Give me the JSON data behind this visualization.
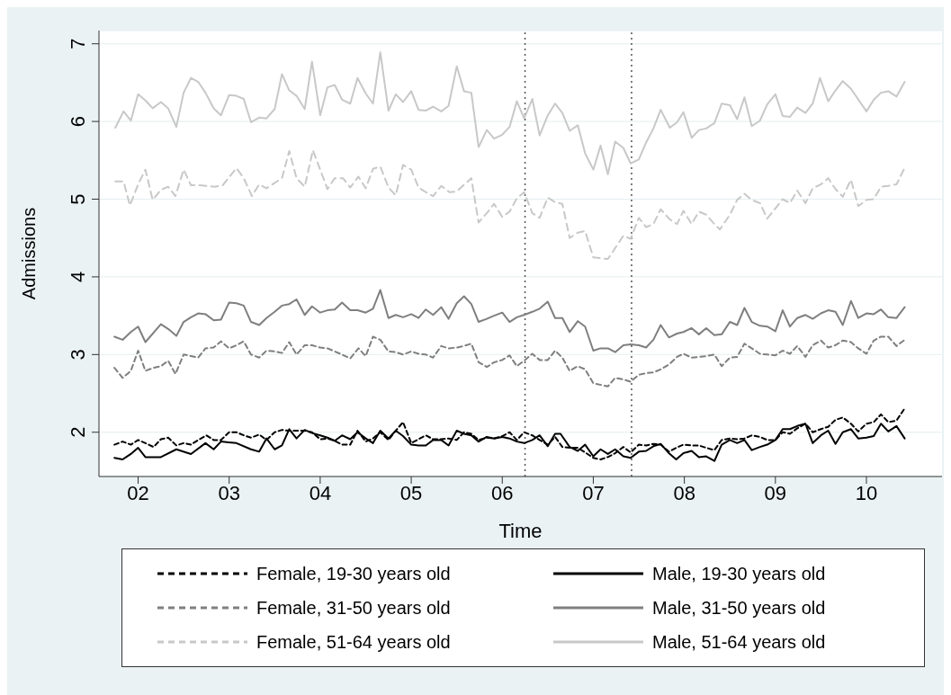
{
  "chart_data": {
    "type": "line",
    "xlabel": "Time",
    "ylabel": "Admissions",
    "xlim": [
      2001.57,
      2010.83
    ],
    "xticks": [
      {
        "value": 2002,
        "label": "02"
      },
      {
        "value": 2003,
        "label": "03"
      },
      {
        "value": 2004,
        "label": "04"
      },
      {
        "value": 2005,
        "label": "05"
      },
      {
        "value": 2006,
        "label": "06"
      },
      {
        "value": 2007,
        "label": "07"
      },
      {
        "value": 2008,
        "label": "08"
      },
      {
        "value": 2009,
        "label": "09"
      },
      {
        "value": 2010,
        "label": "10"
      }
    ],
    "ylim": [
      1.43,
      7.17
    ],
    "yticks": [
      2,
      3,
      4,
      5,
      6,
      7
    ],
    "grid": "y",
    "legend": "bottom",
    "marker": "none",
    "ref_lines": [
      {
        "axis": "x",
        "value": 2006.25,
        "color": "#555555",
        "line_style": "dotted"
      },
      {
        "axis": "x",
        "value": 2007.42,
        "color": "#555555",
        "line_style": "dotted"
      }
    ],
    "series": [
      {
        "name": "Female, 19-30 years old",
        "color": "#000000",
        "line_style": "dashed",
        "x": [
          2001.74,
          2001.83,
          2001.92,
          2002.0,
          2002.08,
          2002.17,
          2002.25,
          2002.33,
          2002.42,
          2002.5,
          2002.58,
          2002.66,
          2002.75,
          2002.83,
          2002.91,
          2003.0,
          2003.08,
          2003.16,
          2003.24,
          2003.33,
          2003.41,
          2003.5,
          2003.58,
          2003.66,
          2003.74,
          2003.83,
          2003.91,
          2004.0,
          2004.08,
          2004.16,
          2004.24,
          2004.33,
          2004.41,
          2004.5,
          2004.58,
          2004.66,
          2004.75,
          2004.83,
          2004.91,
          2005.0,
          2005.08,
          2005.16,
          2005.24,
          2005.33,
          2005.41,
          2005.5,
          2005.58,
          2005.66,
          2005.74,
          2005.83,
          2005.91,
          2006.0,
          2006.08,
          2006.16,
          2006.24,
          2006.33,
          2006.41,
          2006.5,
          2006.58,
          2006.66,
          2006.74,
          2006.83,
          2006.91,
          2007.0,
          2007.08,
          2007.16,
          2007.24,
          2007.33,
          2007.41,
          2007.5,
          2007.58,
          2007.66,
          2007.74,
          2007.83,
          2007.91,
          2007.99,
          2008.08,
          2008.16,
          2008.24,
          2008.33,
          2008.41,
          2008.5,
          2008.58,
          2008.66,
          2008.74,
          2008.83,
          2008.91,
          2009.0,
          2009.08,
          2009.16,
          2009.24,
          2009.33,
          2009.41,
          2009.5,
          2009.58,
          2009.66,
          2009.74,
          2009.83,
          2009.91,
          2010.0,
          2010.08,
          2010.16,
          2010.24,
          2010.33,
          2010.41
        ],
        "values": [
          1.84,
          1.88,
          1.84,
          1.9,
          1.86,
          1.81,
          1.91,
          1.93,
          1.83,
          1.86,
          1.84,
          1.9,
          1.96,
          1.9,
          1.9,
          2.0,
          2.0,
          1.96,
          1.93,
          1.97,
          1.9,
          2.0,
          2.03,
          2.02,
          2.02,
          2.02,
          2.0,
          1.91,
          1.92,
          1.89,
          1.84,
          1.84,
          2.02,
          1.88,
          1.92,
          2.0,
          1.9,
          2.02,
          2.13,
          1.86,
          1.91,
          1.96,
          1.91,
          1.91,
          1.92,
          1.9,
          2.0,
          1.98,
          1.9,
          1.93,
          1.92,
          1.95,
          2.0,
          1.9,
          2.0,
          1.96,
          1.9,
          1.84,
          1.94,
          1.81,
          1.8,
          1.8,
          1.74,
          1.67,
          1.65,
          1.68,
          1.73,
          1.81,
          1.74,
          1.84,
          1.83,
          1.85,
          1.84,
          1.75,
          1.8,
          1.84,
          1.83,
          1.83,
          1.8,
          1.77,
          1.9,
          1.92,
          1.91,
          1.92,
          1.96,
          1.94,
          1.9,
          1.9,
          2.0,
          1.98,
          2.05,
          2.11,
          2.0,
          2.04,
          2.07,
          2.16,
          2.19,
          2.11,
          2.01,
          2.11,
          2.13,
          2.23,
          2.13,
          2.15,
          2.29
        ]
      },
      {
        "name": "Male, 19-30 years old",
        "color": "#000000",
        "line_style": "solid",
        "x": [
          2001.74,
          2001.83,
          2001.92,
          2002.0,
          2002.08,
          2002.25,
          2002.42,
          2002.58,
          2002.74,
          2002.83,
          2002.91,
          2003.08,
          2003.24,
          2003.33,
          2003.41,
          2003.5,
          2003.58,
          2003.66,
          2003.74,
          2003.83,
          2003.91,
          2004.0,
          2004.08,
          2004.16,
          2004.24,
          2004.33,
          2004.41,
          2004.5,
          2004.58,
          2004.66,
          2004.75,
          2004.83,
          2004.91,
          2005.0,
          2005.08,
          2005.16,
          2005.24,
          2005.33,
          2005.41,
          2005.5,
          2005.58,
          2005.66,
          2005.74,
          2005.83,
          2005.91,
          2006.0,
          2006.08,
          2006.16,
          2006.24,
          2006.33,
          2006.41,
          2006.5,
          2006.58,
          2006.64,
          2006.74,
          2006.83,
          2006.91,
          2007.0,
          2007.08,
          2007.16,
          2007.24,
          2007.33,
          2007.41,
          2007.5,
          2007.58,
          2007.66,
          2007.74,
          2007.83,
          2007.91,
          2007.99,
          2008.08,
          2008.16,
          2008.24,
          2008.33,
          2008.41,
          2008.5,
          2008.58,
          2008.66,
          2008.74,
          2008.83,
          2008.91,
          2009.0,
          2009.08,
          2009.16,
          2009.24,
          2009.33,
          2009.41,
          2009.5,
          2009.58,
          2009.66,
          2009.74,
          2009.83,
          2009.91,
          2010.0,
          2010.08,
          2010.16,
          2010.24,
          2010.33,
          2010.42
        ],
        "values": [
          1.67,
          1.65,
          1.72,
          1.8,
          1.68,
          1.68,
          1.78,
          1.72,
          1.86,
          1.78,
          1.88,
          1.86,
          1.78,
          1.75,
          1.92,
          1.78,
          1.83,
          2.04,
          1.92,
          2.03,
          1.99,
          1.96,
          1.93,
          1.89,
          1.96,
          1.91,
          2.0,
          1.92,
          1.86,
          2.02,
          1.92,
          2.02,
          1.95,
          1.84,
          1.83,
          1.83,
          1.9,
          1.9,
          1.83,
          2.02,
          1.98,
          1.96,
          1.88,
          1.94,
          1.92,
          1.94,
          1.92,
          1.88,
          1.86,
          1.9,
          1.96,
          1.82,
          1.98,
          1.98,
          1.81,
          1.76,
          1.84,
          1.69,
          1.78,
          1.72,
          1.78,
          1.69,
          1.67,
          1.75,
          1.76,
          1.82,
          1.85,
          1.73,
          1.65,
          1.73,
          1.76,
          1.68,
          1.69,
          1.63,
          1.84,
          1.9,
          1.86,
          1.9,
          1.77,
          1.81,
          1.84,
          1.9,
          2.04,
          2.04,
          2.08,
          2.11,
          1.86,
          1.96,
          2.02,
          1.85,
          2.0,
          2.04,
          1.92,
          1.93,
          1.95,
          2.11,
          2.01,
          2.08,
          1.92
        ]
      },
      {
        "name": "Female, 31-50 years old",
        "color": "#7f7f7f",
        "line_style": "dashed",
        "x": [
          2001.74,
          2001.83,
          2001.92,
          2002.0,
          2002.08,
          2002.17,
          2002.25,
          2002.33,
          2002.41,
          2002.5,
          2002.58,
          2002.66,
          2002.74,
          2002.83,
          2002.91,
          2003.0,
          2003.08,
          2003.16,
          2003.24,
          2003.33,
          2003.41,
          2003.5,
          2003.58,
          2003.66,
          2003.74,
          2003.83,
          2003.91,
          2004.0,
          2004.08,
          2004.16,
          2004.24,
          2004.33,
          2004.42,
          2004.5,
          2004.58,
          2004.66,
          2004.75,
          2004.83,
          2004.91,
          2005.0,
          2005.08,
          2005.16,
          2005.24,
          2005.33,
          2005.41,
          2005.5,
          2005.58,
          2005.66,
          2005.74,
          2005.83,
          2005.91,
          2006.0,
          2006.08,
          2006.16,
          2006.24,
          2006.33,
          2006.41,
          2006.5,
          2006.58,
          2006.66,
          2006.74,
          2006.83,
          2006.91,
          2007.0,
          2007.16,
          2007.24,
          2007.33,
          2007.41,
          2007.5,
          2007.58,
          2007.66,
          2007.74,
          2007.83,
          2007.92,
          2007.99,
          2008.08,
          2008.16,
          2008.24,
          2008.33,
          2008.41,
          2008.5,
          2008.58,
          2008.66,
          2008.74,
          2008.83,
          2008.91,
          2009.0,
          2009.08,
          2009.16,
          2009.24,
          2009.33,
          2009.41,
          2009.5,
          2009.58,
          2009.66,
          2009.74,
          2009.83,
          2009.91,
          2010.0,
          2010.08,
          2010.16,
          2010.24,
          2010.33,
          2010.41
        ],
        "values": [
          2.83,
          2.7,
          2.79,
          3.05,
          2.79,
          2.83,
          2.85,
          2.92,
          2.75,
          3.0,
          2.98,
          2.96,
          3.08,
          3.09,
          3.17,
          3.08,
          3.12,
          3.17,
          3.0,
          2.96,
          3.05,
          3.04,
          3.02,
          3.16,
          3.0,
          3.12,
          3.12,
          3.09,
          3.08,
          3.04,
          3.0,
          2.95,
          3.08,
          2.98,
          3.23,
          3.19,
          3.04,
          3.03,
          3.0,
          3.04,
          3.01,
          3.0,
          2.96,
          3.11,
          3.08,
          3.09,
          3.11,
          3.14,
          2.9,
          2.84,
          2.9,
          2.93,
          2.99,
          2.85,
          2.92,
          3.01,
          2.93,
          2.93,
          3.05,
          2.96,
          2.79,
          2.85,
          2.81,
          2.63,
          2.59,
          2.7,
          2.68,
          2.65,
          2.74,
          2.76,
          2.77,
          2.81,
          2.87,
          2.97,
          3.01,
          2.96,
          2.97,
          2.98,
          3.0,
          2.85,
          2.96,
          2.97,
          3.14,
          3.08,
          3.01,
          3.0,
          2.99,
          3.05,
          3.01,
          3.11,
          2.97,
          3.12,
          3.18,
          3.09,
          3.12,
          3.18,
          3.16,
          3.08,
          3.01,
          3.18,
          3.23,
          3.23,
          3.11,
          3.18
        ]
      },
      {
        "name": "Male, 31-50 years old",
        "color": "#7f7f7f",
        "line_style": "solid",
        "x": [
          2001.74,
          2001.83,
          2001.92,
          2002.0,
          2002.08,
          2002.25,
          2002.33,
          2002.42,
          2002.5,
          2002.58,
          2002.66,
          2002.74,
          2002.83,
          2002.91,
          2003.0,
          2003.08,
          2003.16,
          2003.24,
          2003.33,
          2003.41,
          2003.5,
          2003.58,
          2003.66,
          2003.74,
          2003.83,
          2003.91,
          2004.0,
          2004.08,
          2004.16,
          2004.24,
          2004.33,
          2004.41,
          2004.5,
          2004.58,
          2004.66,
          2004.75,
          2004.83,
          2004.91,
          2005.0,
          2005.08,
          2005.16,
          2005.24,
          2005.33,
          2005.41,
          2005.5,
          2005.58,
          2005.66,
          2005.74,
          2005.83,
          2005.91,
          2006.0,
          2006.08,
          2006.16,
          2006.24,
          2006.33,
          2006.41,
          2006.5,
          2006.58,
          2006.66,
          2006.74,
          2006.83,
          2006.91,
          2007.0,
          2007.08,
          2007.16,
          2007.24,
          2007.33,
          2007.41,
          2007.5,
          2007.58,
          2007.66,
          2007.74,
          2007.83,
          2007.92,
          2007.99,
          2008.08,
          2008.16,
          2008.24,
          2008.33,
          2008.41,
          2008.5,
          2008.58,
          2008.66,
          2008.74,
          2008.83,
          2008.91,
          2009.0,
          2009.08,
          2009.16,
          2009.24,
          2009.33,
          2009.41,
          2009.5,
          2009.58,
          2009.66,
          2009.74,
          2009.83,
          2009.91,
          2010.0,
          2010.08,
          2010.16,
          2010.24,
          2010.33,
          2010.42
        ],
        "values": [
          3.23,
          3.19,
          3.29,
          3.36,
          3.16,
          3.39,
          3.33,
          3.24,
          3.42,
          3.48,
          3.53,
          3.52,
          3.44,
          3.45,
          3.67,
          3.66,
          3.63,
          3.42,
          3.38,
          3.47,
          3.55,
          3.63,
          3.65,
          3.71,
          3.51,
          3.62,
          3.54,
          3.57,
          3.58,
          3.67,
          3.57,
          3.57,
          3.54,
          3.59,
          3.83,
          3.47,
          3.51,
          3.48,
          3.52,
          3.47,
          3.58,
          3.51,
          3.61,
          3.46,
          3.66,
          3.75,
          3.65,
          3.42,
          3.46,
          3.5,
          3.54,
          3.42,
          3.48,
          3.51,
          3.55,
          3.59,
          3.68,
          3.47,
          3.47,
          3.29,
          3.43,
          3.36,
          3.05,
          3.08,
          3.08,
          3.03,
          3.12,
          3.13,
          3.12,
          3.09,
          3.19,
          3.38,
          3.22,
          3.27,
          3.29,
          3.34,
          3.26,
          3.34,
          3.25,
          3.26,
          3.42,
          3.38,
          3.6,
          3.42,
          3.37,
          3.36,
          3.3,
          3.57,
          3.36,
          3.47,
          3.51,
          3.46,
          3.53,
          3.57,
          3.55,
          3.38,
          3.69,
          3.47,
          3.53,
          3.52,
          3.58,
          3.48,
          3.47,
          3.61
        ]
      },
      {
        "name": "Female, 51-64 years old",
        "color": "#c8c8c8",
        "line_style": "dashed",
        "x": [
          2001.75,
          2001.84,
          2001.91,
          2002.0,
          2002.08,
          2002.16,
          2002.25,
          2002.33,
          2002.41,
          2002.5,
          2002.58,
          2002.66,
          2002.84,
          2002.93,
          2003.08,
          2003.16,
          2003.25,
          2003.33,
          2003.41,
          2003.58,
          2003.66,
          2003.74,
          2003.83,
          2003.92,
          2004.0,
          2004.08,
          2004.16,
          2004.25,
          2004.33,
          2004.42,
          2004.5,
          2004.58,
          2004.66,
          2004.75,
          2004.83,
          2004.91,
          2005.0,
          2005.08,
          2005.16,
          2005.24,
          2005.33,
          2005.42,
          2005.5,
          2005.66,
          2005.74,
          2005.83,
          2005.91,
          2006.0,
          2006.08,
          2006.16,
          2006.24,
          2006.33,
          2006.41,
          2006.5,
          2006.58,
          2006.66,
          2006.74,
          2006.83,
          2006.91,
          2007.0,
          2007.16,
          2007.24,
          2007.33,
          2007.41,
          2007.5,
          2007.58,
          2007.66,
          2007.74,
          2007.84,
          2007.92,
          2007.99,
          2008.08,
          2008.16,
          2008.24,
          2008.33,
          2008.39,
          2008.5,
          2008.58,
          2008.66,
          2008.74,
          2008.83,
          2008.91,
          2009.0,
          2009.08,
          2009.16,
          2009.24,
          2009.33,
          2009.41,
          2009.5,
          2009.58,
          2009.66,
          2009.74,
          2009.83,
          2009.91,
          2010.0,
          2010.08,
          2010.16,
          2010.24,
          2010.33,
          2010.41
        ],
        "values": [
          5.23,
          5.23,
          4.92,
          5.19,
          5.38,
          4.99,
          5.12,
          5.16,
          5.04,
          5.38,
          5.18,
          5.18,
          5.16,
          5.18,
          5.4,
          5.27,
          5.04,
          5.19,
          5.14,
          5.27,
          5.62,
          5.27,
          5.16,
          5.63,
          5.38,
          5.13,
          5.27,
          5.27,
          5.15,
          5.29,
          5.14,
          5.39,
          5.42,
          5.15,
          5.05,
          5.44,
          5.38,
          5.15,
          5.09,
          5.04,
          5.17,
          5.09,
          5.1,
          5.27,
          4.7,
          4.82,
          4.94,
          4.77,
          4.84,
          5.01,
          5.09,
          4.82,
          4.76,
          5.02,
          4.96,
          4.94,
          4.5,
          4.57,
          4.59,
          4.25,
          4.23,
          4.37,
          4.53,
          4.49,
          4.76,
          4.64,
          4.68,
          4.87,
          4.74,
          4.68,
          4.85,
          4.68,
          4.84,
          4.8,
          4.68,
          4.61,
          4.8,
          4.99,
          5.07,
          4.99,
          4.95,
          4.75,
          4.88,
          5.0,
          4.95,
          5.11,
          4.95,
          5.14,
          5.19,
          5.27,
          5.13,
          5.03,
          5.25,
          4.91,
          4.99,
          5.0,
          5.16,
          5.17,
          5.19,
          5.38
        ]
      },
      {
        "name": "Male, 51-64 years old",
        "color": "#c8c8c8",
        "line_style": "solid",
        "x": [
          2001.75,
          2001.84,
          2001.92,
          2002.0,
          2002.08,
          2002.16,
          2002.25,
          2002.33,
          2002.42,
          2002.5,
          2002.58,
          2002.66,
          2002.74,
          2002.83,
          2002.91,
          2003.0,
          2003.08,
          2003.16,
          2003.24,
          2003.33,
          2003.41,
          2003.5,
          2003.58,
          2003.66,
          2003.74,
          2003.83,
          2003.91,
          2004.0,
          2004.08,
          2004.16,
          2004.24,
          2004.33,
          2004.41,
          2004.5,
          2004.58,
          2004.66,
          2004.75,
          2004.83,
          2004.91,
          2005.0,
          2005.08,
          2005.16,
          2005.24,
          2005.33,
          2005.41,
          2005.5,
          2005.58,
          2005.66,
          2005.74,
          2005.83,
          2005.91,
          2006.0,
          2006.08,
          2006.16,
          2006.24,
          2006.33,
          2006.41,
          2006.5,
          2006.58,
          2006.66,
          2006.74,
          2006.83,
          2006.91,
          2007.0,
          2007.08,
          2007.16,
          2007.24,
          2007.33,
          2007.41,
          2007.5,
          2007.58,
          2007.66,
          2007.74,
          2007.84,
          2007.92,
          2007.99,
          2008.08,
          2008.16,
          2008.24,
          2008.33,
          2008.41,
          2008.5,
          2008.58,
          2008.66,
          2008.74,
          2008.83,
          2008.91,
          2009.0,
          2009.08,
          2009.16,
          2009.24,
          2009.33,
          2009.41,
          2009.49,
          2009.58,
          2009.66,
          2009.74,
          2009.83,
          2010.0,
          2010.08,
          2010.16,
          2010.24,
          2010.33,
          2010.42
        ],
        "values": [
          5.92,
          6.13,
          6.01,
          6.35,
          6.27,
          6.17,
          6.25,
          6.17,
          5.93,
          6.37,
          6.56,
          6.51,
          6.37,
          6.17,
          6.08,
          6.34,
          6.33,
          6.29,
          5.99,
          6.05,
          6.04,
          6.16,
          6.61,
          6.4,
          6.33,
          6.16,
          6.77,
          6.08,
          6.44,
          6.47,
          6.28,
          6.23,
          6.56,
          6.36,
          6.23,
          6.89,
          6.14,
          6.35,
          6.25,
          6.39,
          6.15,
          6.14,
          6.19,
          6.13,
          6.2,
          6.71,
          6.39,
          6.37,
          5.67,
          5.89,
          5.78,
          5.83,
          5.93,
          6.26,
          6.04,
          6.29,
          5.82,
          6.08,
          6.23,
          6.11,
          5.88,
          5.95,
          5.59,
          5.38,
          5.69,
          5.32,
          5.74,
          5.66,
          5.46,
          5.51,
          5.73,
          5.91,
          6.15,
          5.92,
          5.99,
          6.12,
          5.79,
          5.89,
          5.91,
          5.98,
          6.23,
          6.21,
          6.03,
          6.31,
          5.94,
          6.01,
          6.22,
          6.35,
          6.07,
          6.06,
          6.18,
          6.11,
          6.23,
          6.56,
          6.26,
          6.4,
          6.52,
          6.42,
          6.13,
          6.28,
          6.37,
          6.39,
          6.32,
          6.51
        ]
      }
    ]
  }
}
